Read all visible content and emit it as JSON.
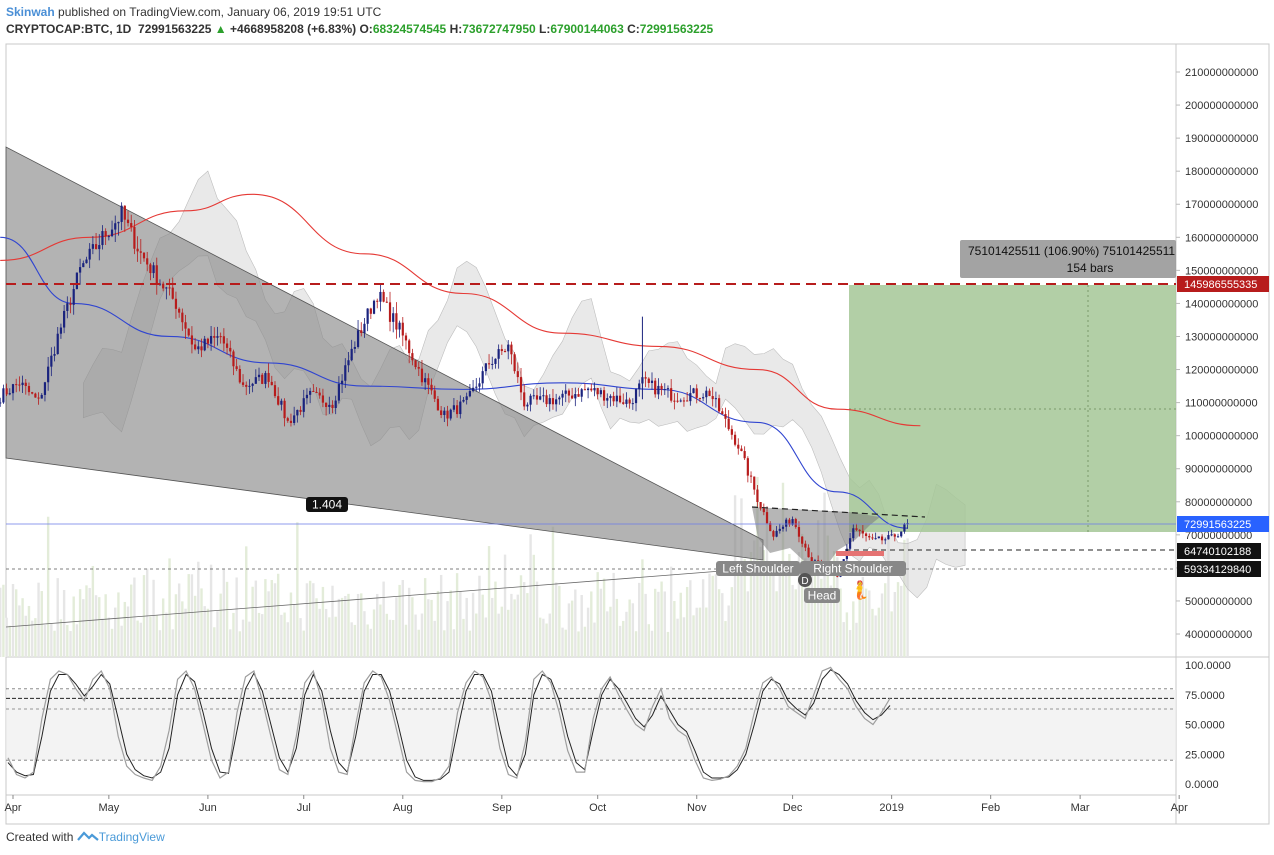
{
  "header": {
    "username": "Skinwah",
    "published": "published on TradingView.com, January 06, 2019 19:51 UTC",
    "symbol": "CRYPTOCAP:BTC, 1D",
    "last": "72991563225",
    "change": "+4668958208 (+6.83%)",
    "o_label": "O:",
    "o_value": "68324574545",
    "h_label": "H:",
    "h_value": "73672747950",
    "l_label": "L:",
    "l_value": "67900144063",
    "c_label": "C:",
    "c_value": "72991563225"
  },
  "footer": {
    "created_with": "Created with",
    "brand": "TradingView"
  },
  "colors": {
    "up": "#1a237e",
    "down": "#b71c1c",
    "ma_red": "#e53935",
    "ma_blue": "#3045d0",
    "resistance": "#b71c1c",
    "target_box": "#a5c796",
    "wedge": "#9e9e9e",
    "price_tag": "#2962ff",
    "stoch_k": "#222222",
    "stoch_d": "#9e9e9e"
  },
  "annotations": {
    "ratio": "1.404",
    "measure_line1": "75101425511 (106.90%) 75101425511",
    "measure_line2": "154 bars",
    "left_shoulder": "Left Shoulder",
    "right_shoulder": "Right Shoulder",
    "head": "Head",
    "d_marker": "D",
    "emoji": "🧜"
  },
  "price_tags": {
    "resistance": "145986555335",
    "current": "72991563225",
    "level1": "64740102188",
    "level2": "59334129840"
  },
  "chart_data": [
    {
      "type": "candlestick",
      "title": "",
      "x_ticks": [
        "Apr",
        "May",
        "Jun",
        "Jul",
        "Aug",
        "Sep",
        "Oct",
        "Nov",
        "Dec",
        "2019",
        "Feb",
        "Mar",
        "Apr"
      ],
      "y_ticks": [
        "210000000000",
        "200000000000",
        "190000000000",
        "180000000000",
        "170000000000",
        "160000000000",
        "150000000000",
        "140000000000",
        "130000000000",
        "120000000000",
        "110000000000",
        "100000000000",
        "90000000000",
        "80000000000",
        "70000000000",
        "60000000000",
        "50000000000",
        "40000000000"
      ],
      "ylim": [
        35000000000,
        218000000000
      ],
      "close_path": [
        [
          "2018-03-28",
          112000000000
        ],
        [
          "2018-04-03",
          116000000000
        ],
        [
          "2018-04-09",
          110000000000
        ],
        [
          "2018-04-15",
          130000000000
        ],
        [
          "2018-04-22",
          150000000000
        ],
        [
          "2018-04-29",
          160000000000
        ],
        [
          "2018-05-05",
          167000000000
        ],
        [
          "2018-05-11",
          155000000000
        ],
        [
          "2018-05-16",
          148000000000
        ],
        [
          "2018-05-22",
          140000000000
        ],
        [
          "2018-05-28",
          126000000000
        ],
        [
          "2018-06-05",
          130000000000
        ],
        [
          "2018-06-12",
          115000000000
        ],
        [
          "2018-06-20",
          118000000000
        ],
        [
          "2018-06-26",
          104000000000
        ],
        [
          "2018-07-03",
          112000000000
        ],
        [
          "2018-07-10",
          110000000000
        ],
        [
          "2018-07-17",
          128000000000
        ],
        [
          "2018-07-24",
          143000000000
        ],
        [
          "2018-07-31",
          132000000000
        ],
        [
          "2018-08-07",
          118000000000
        ],
        [
          "2018-08-14",
          106000000000
        ],
        [
          "2018-08-21",
          110000000000
        ],
        [
          "2018-08-28",
          122000000000
        ],
        [
          "2018-09-03",
          127000000000
        ],
        [
          "2018-09-08",
          110000000000
        ],
        [
          "2018-09-18",
          111000000000
        ],
        [
          "2018-09-28",
          114000000000
        ],
        [
          "2018-10-11",
          110000000000
        ],
        [
          "2018-10-15",
          116000000000
        ],
        [
          "2018-10-25",
          112000000000
        ],
        [
          "2018-11-05",
          113000000000
        ],
        [
          "2018-11-14",
          97000000000
        ],
        [
          "2018-11-20",
          81000000000
        ],
        [
          "2018-11-25",
          70000000000
        ],
        [
          "2018-12-01",
          75000000000
        ],
        [
          "2018-12-07",
          62000000000
        ],
        [
          "2018-12-15",
          57000000000
        ],
        [
          "2018-12-20",
          72000000000
        ],
        [
          "2018-12-26",
          68000000000
        ],
        [
          "2019-01-01",
          69000000000
        ],
        [
          "2019-01-06",
          72991563225
        ]
      ],
      "series": [
        {
          "name": "",
          "points": [
            [
              "2018-03-28",
              153000000000
            ],
            [
              "2018-04-25",
              160000000000
            ],
            [
              "2018-05-25",
              168000000000
            ],
            [
              "2018-06-15",
              173000000000
            ],
            [
              "2018-07-20",
              155000000000
            ],
            [
              "2018-08-20",
              143000000000
            ],
            [
              "2018-09-20",
              131000000000
            ],
            [
              "2018-10-20",
              127000000000
            ],
            [
              "2018-11-20",
              120000000000
            ],
            [
              "2018-12-15",
              108000000000
            ],
            [
              "2019-01-10",
              103000000000
            ]
          ]
        },
        {
          "name": "",
          "points": [
            [
              "2018-03-28",
              160000000000
            ],
            [
              "2018-04-20",
              140000000000
            ],
            [
              "2018-05-20",
              130000000000
            ],
            [
              "2018-06-20",
              122000000000
            ],
            [
              "2018-07-20",
              115000000000
            ],
            [
              "2018-08-20",
              114000000000
            ],
            [
              "2018-09-20",
              116000000000
            ],
            [
              "2018-10-20",
              114000000000
            ],
            [
              "2018-11-20",
              104000000000
            ],
            [
              "2018-12-15",
              83000000000
            ],
            [
              "2019-01-06",
              72000000000
            ]
          ]
        }
      ],
      "levels": [
        145986555335,
        72991563225,
        64740102188,
        59334129840
      ]
    },
    {
      "type": "line",
      "title": "",
      "y_ticks": [
        "100.0000",
        "75.0000",
        "50.0000",
        "25.0000",
        "0.0000"
      ],
      "ylim": [
        -5,
        103
      ],
      "levels": [
        80,
        72,
        63,
        20
      ],
      "series": [
        {
          "name": "",
          "values": [
            22,
            8,
            5,
            10,
            55,
            88,
            95,
            92,
            80,
            70,
            88,
            95,
            80,
            40,
            15,
            8,
            5,
            3,
            15,
            45,
            88,
            95,
            80,
            50,
            20,
            5,
            10,
            60,
            90,
            95,
            70,
            40,
            12,
            8,
            40,
            85,
            95,
            70,
            30,
            10,
            8,
            50,
            85,
            95,
            90,
            70,
            40,
            10,
            3,
            2,
            2,
            5,
            15,
            60,
            85,
            95,
            90,
            70,
            30,
            8,
            5,
            35,
            88,
            95,
            85,
            60,
            28,
            10,
            10,
            55,
            80,
            90,
            75,
            62,
            50,
            45,
            65,
            80,
            55,
            45,
            40,
            20,
            5,
            3,
            4,
            7,
            15,
            30,
            60,
            85,
            90,
            80,
            65,
            60,
            55,
            75,
            95,
            98,
            88,
            80,
            65,
            55,
            50,
            60,
            72
          ]
        },
        {
          "name": "",
          "values": [
            18,
            10,
            7,
            8,
            40,
            78,
            92,
            92,
            84,
            74,
            82,
            92,
            84,
            55,
            25,
            12,
            7,
            5,
            10,
            30,
            75,
            92,
            86,
            60,
            30,
            10,
            9,
            45,
            80,
            93,
            78,
            50,
            22,
            10,
            30,
            75,
            92,
            78,
            45,
            18,
            10,
            40,
            78,
            92,
            92,
            78,
            50,
            20,
            6,
            3,
            3,
            4,
            10,
            45,
            78,
            92,
            92,
            78,
            45,
            15,
            7,
            25,
            75,
            92,
            88,
            70,
            40,
            18,
            12,
            45,
            75,
            88,
            80,
            68,
            55,
            48,
            58,
            74,
            62,
            50,
            44,
            28,
            10,
            5,
            5,
            6,
            12,
            25,
            50,
            78,
            88,
            84,
            70,
            63,
            58,
            68,
            88,
            96,
            92,
            84,
            70,
            60,
            54,
            58,
            66
          ]
        }
      ]
    }
  ]
}
